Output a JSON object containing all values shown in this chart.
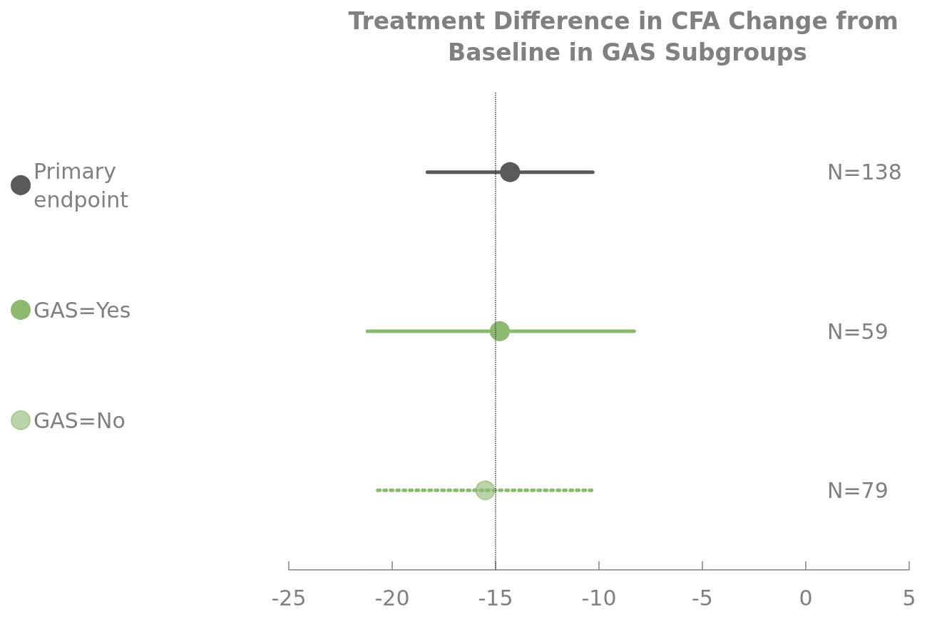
{
  "chart_data": {
    "type": "scatter",
    "title": "Treatment Difference in CFA Change from Baseline in GAS Subgroups",
    "orientation": "horizontal",
    "categories": [
      null,
      null,
      null
    ],
    "series": [
      {
        "name": "Primary endpoint",
        "color": "#595959",
        "values": [
          -14.3,
          null,
          null
        ],
        "errors": [
          [
            -18.3,
            -10.3
          ],
          null,
          null
        ]
      },
      {
        "name": "GAS=Yes",
        "color": "#8db870",
        "values": [
          null,
          -14.8,
          null
        ],
        "errors": [
          null,
          [
            -21.2,
            -8.3
          ],
          null
        ]
      },
      {
        "name": "GAS=No",
        "color": "#8db870",
        "line_style": "dotted",
        "values": [
          null,
          null,
          -15.5
        ],
        "errors": [
          null,
          null,
          [
            -20.7,
            -10.2
          ]
        ]
      }
    ],
    "xlim": [
      -25,
      5
    ],
    "xticks": [
      -25,
      -20,
      -15,
      -10,
      -5,
      0,
      5
    ],
    "ref_lines": [
      {
        "axis": "x",
        "value": -15,
        "color": "#404040",
        "line_style": "dotted"
      }
    ],
    "annotations": [
      "N=138",
      "N=59",
      "N=79"
    ],
    "marker": "circle",
    "legend": "left",
    "grid": false,
    "tick_labels": "x"
  }
}
